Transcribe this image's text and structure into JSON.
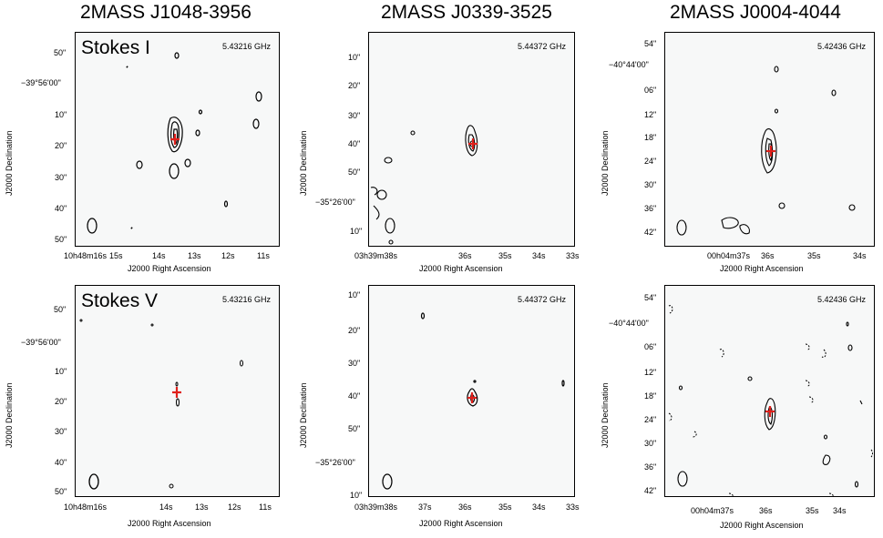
{
  "columns": [
    {
      "title": "2MASS J1048-3956",
      "freq": "5.43216 GHz",
      "ra_ticks": [
        "10h48m16s",
        "15s",
        "14s",
        "13s",
        "12s",
        "11s"
      ],
      "ra_ticks_v": [
        "10h48m16s",
        "14s",
        "13s",
        "12s",
        "11s"
      ],
      "dec_ticks_i": [
        "50\"",
        "−39°56'00\"",
        "10\"",
        "20\"",
        "30\"",
        "40\"",
        "50\""
      ],
      "dec_ticks_v": [
        "50\"",
        "−39°56'00\"",
        "10\"",
        "20\"",
        "30\"",
        "40\"",
        "50\""
      ]
    },
    {
      "title": "2MASS J0339-3525",
      "freq": "5.44372 GHz",
      "ra_ticks": [
        "03h39m38s",
        "36s",
        "35s",
        "34s",
        "33s"
      ],
      "ra_ticks_v": [
        "03h39m38s",
        "37s",
        "36s",
        "35s",
        "34s",
        "33s"
      ],
      "dec_ticks_i": [
        "10\"",
        "20\"",
        "30\"",
        "40\"",
        "50\"",
        "−35°26'00\"",
        "10\""
      ],
      "dec_ticks_v": [
        "10\"",
        "20\"",
        "30\"",
        "40\"",
        "50\"",
        "−35°26'00\"",
        "10\""
      ]
    },
    {
      "title": "2MASS J0004-4044",
      "freq": "5.42436 GHz",
      "ra_ticks": [
        "00h04m37s",
        "36s",
        "35s",
        "34s"
      ],
      "ra_ticks_v": [
        "00h04m37s",
        "36s",
        "35s",
        "34s"
      ],
      "dec_ticks_i": [
        "54\"",
        "−40°44'00\"",
        "06\"",
        "12\"",
        "18\"",
        "24\"",
        "30\"",
        "36\"",
        "42\""
      ],
      "dec_ticks_v": [
        "54\"",
        "−40°44'00\"",
        "06\"",
        "12\"",
        "18\"",
        "24\"",
        "30\"",
        "36\"",
        "42\""
      ]
    }
  ],
  "stokes_i_label": "Stokes I",
  "stokes_v_label": "Stokes V",
  "xlabel": "J2000 Right Ascension",
  "ylabel": "J2000 Declination",
  "colors": {
    "contour": "#000000",
    "marker": "#e0201b",
    "background": "#f7f8f8"
  }
}
